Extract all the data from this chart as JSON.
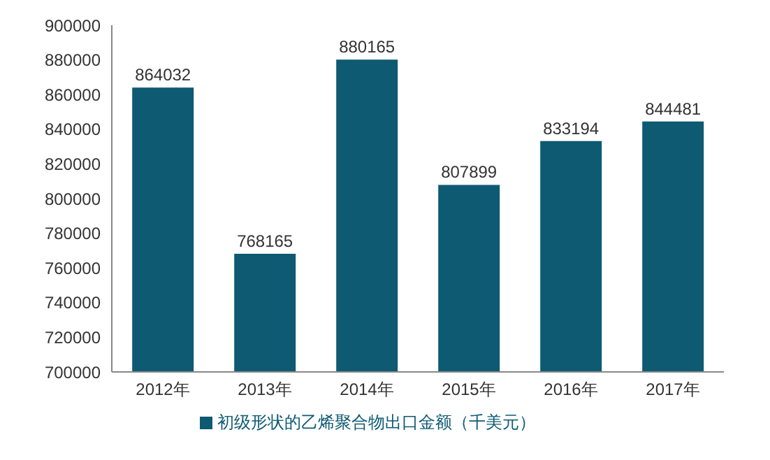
{
  "chart_data": {
    "type": "bar",
    "categories": [
      "2012年",
      "2013年",
      "2014年",
      "2015年",
      "2016年",
      "2017年"
    ],
    "series": [
      {
        "name": "初级形状的乙烯聚合物出口金额（千美元）",
        "color": "#0e5a73",
        "values": [
          864032,
          768165,
          880165,
          807899,
          833194,
          844481
        ]
      }
    ],
    "ylim": [
      700000,
      900000
    ],
    "yticks": [
      700000,
      720000,
      740000,
      760000,
      780000,
      800000,
      820000,
      840000,
      860000,
      880000,
      900000
    ],
    "data_labels": true,
    "grid": false,
    "legend": "bottom"
  }
}
